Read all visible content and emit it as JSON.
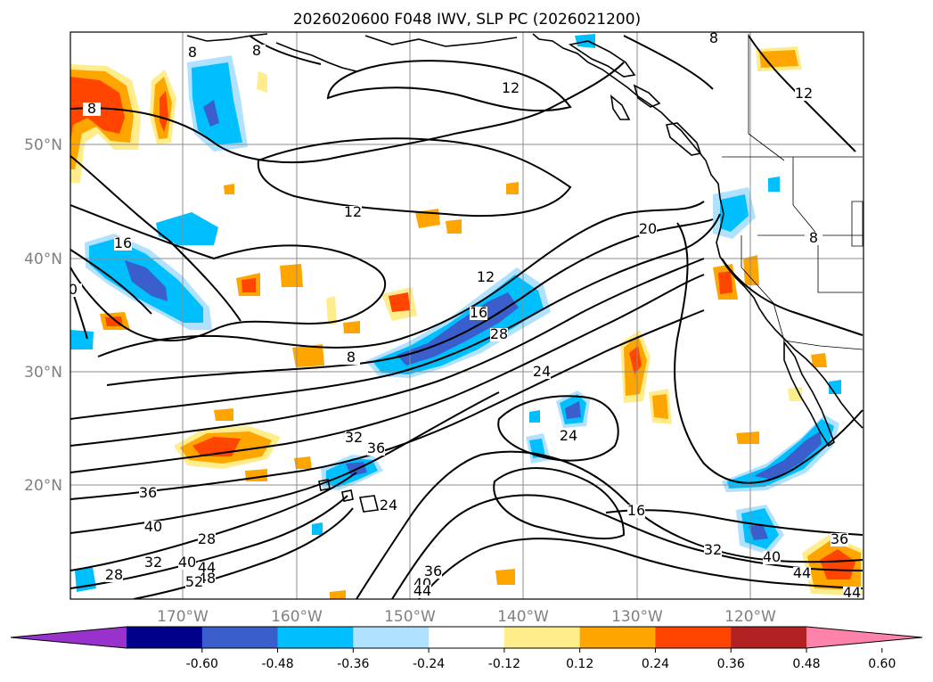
{
  "title": "2026020600 F048 IWV, SLP PC (2026021200)",
  "map": {
    "lat_labels": [
      "50°N",
      "40°N",
      "30°N",
      "20°N"
    ],
    "lon_labels": [
      "170°W",
      "160°W",
      "150°W",
      "140°W",
      "130°W",
      "120°W"
    ]
  },
  "colorbar": {
    "colors": [
      "#9932cc",
      "#00008b",
      "#3a5fcd",
      "#00bfff",
      "#b0e2ff",
      "#ffffff",
      "#ffec8b",
      "#ffa500",
      "#ff4500",
      "#b22222",
      "#ff82ab"
    ],
    "tick_labels": [
      "-0.60",
      "-0.48",
      "-0.36",
      "-0.24",
      "-0.12",
      "0.12",
      "0.24",
      "0.36",
      "0.48",
      "0.60"
    ]
  },
  "contour_labels": [
    "12",
    "12",
    "16",
    "20",
    "12",
    "16",
    "28",
    "8",
    "8",
    "8",
    "8",
    "8",
    "8",
    "24",
    "24",
    "32",
    "36",
    "24",
    "36",
    "40",
    "28",
    "32",
    "40",
    "44",
    "48",
    "52",
    "28",
    "36",
    "40",
    "44",
    "16",
    "32",
    "40",
    "36",
    "44",
    "44",
    "12",
    "0"
  ]
}
